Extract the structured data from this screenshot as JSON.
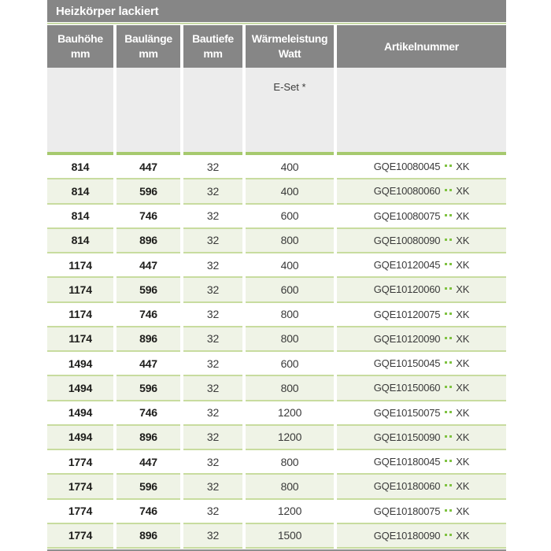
{
  "title": "Heizkörper lackiert",
  "table": {
    "columns": [
      {
        "line1": "Bauhöhe",
        "line2": "mm"
      },
      {
        "line1": "Baulänge",
        "line2": "mm"
      },
      {
        "line1": "Bautiefe",
        "line2": "mm"
      },
      {
        "line1": "Wärmeleistung",
        "line2": "Watt"
      },
      {
        "line1": "Artikelnummer",
        "line2": ""
      }
    ],
    "subheader_eset": "E-Set *",
    "rows": [
      {
        "bauhoehe": "814",
        "baulaenge": "447",
        "bautiefe": "32",
        "watt": "400",
        "artikel_prefix": "GQE10080045",
        "artikel_suffix": "XK"
      },
      {
        "bauhoehe": "814",
        "baulaenge": "596",
        "bautiefe": "32",
        "watt": "400",
        "artikel_prefix": "GQE10080060",
        "artikel_suffix": "XK"
      },
      {
        "bauhoehe": "814",
        "baulaenge": "746",
        "bautiefe": "32",
        "watt": "600",
        "artikel_prefix": "GQE10080075",
        "artikel_suffix": "XK"
      },
      {
        "bauhoehe": "814",
        "baulaenge": "896",
        "bautiefe": "32",
        "watt": "800",
        "artikel_prefix": "GQE10080090",
        "artikel_suffix": "XK"
      },
      {
        "bauhoehe": "1174",
        "baulaenge": "447",
        "bautiefe": "32",
        "watt": "400",
        "artikel_prefix": "GQE10120045",
        "artikel_suffix": "XK"
      },
      {
        "bauhoehe": "1174",
        "baulaenge": "596",
        "bautiefe": "32",
        "watt": "600",
        "artikel_prefix": "GQE10120060",
        "artikel_suffix": "XK"
      },
      {
        "bauhoehe": "1174",
        "baulaenge": "746",
        "bautiefe": "32",
        "watt": "800",
        "artikel_prefix": "GQE10120075",
        "artikel_suffix": "XK"
      },
      {
        "bauhoehe": "1174",
        "baulaenge": "896",
        "bautiefe": "32",
        "watt": "800",
        "artikel_prefix": "GQE10120090",
        "artikel_suffix": "XK"
      },
      {
        "bauhoehe": "1494",
        "baulaenge": "447",
        "bautiefe": "32",
        "watt": "600",
        "artikel_prefix": "GQE10150045",
        "artikel_suffix": "XK"
      },
      {
        "bauhoehe": "1494",
        "baulaenge": "596",
        "bautiefe": "32",
        "watt": "800",
        "artikel_prefix": "GQE10150060",
        "artikel_suffix": "XK"
      },
      {
        "bauhoehe": "1494",
        "baulaenge": "746",
        "bautiefe": "32",
        "watt": "1200",
        "artikel_prefix": "GQE10150075",
        "artikel_suffix": "XK"
      },
      {
        "bauhoehe": "1494",
        "baulaenge": "896",
        "bautiefe": "32",
        "watt": "1200",
        "artikel_prefix": "GQE10150090",
        "artikel_suffix": "XK"
      },
      {
        "bauhoehe": "1774",
        "baulaenge": "447",
        "bautiefe": "32",
        "watt": "800",
        "artikel_prefix": "GQE10180045",
        "artikel_suffix": "XK"
      },
      {
        "bauhoehe": "1774",
        "baulaenge": "596",
        "bautiefe": "32",
        "watt": "800",
        "artikel_prefix": "GQE10180060",
        "artikel_suffix": "XK"
      },
      {
        "bauhoehe": "1774",
        "baulaenge": "746",
        "bautiefe": "32",
        "watt": "1200",
        "artikel_prefix": "GQE10180075",
        "artikel_suffix": "XK"
      },
      {
        "bauhoehe": "1774",
        "baulaenge": "896",
        "bautiefe": "32",
        "watt": "1500",
        "artikel_prefix": "GQE10180090",
        "artikel_suffix": "XK"
      }
    ]
  },
  "colors": {
    "header_gray": "#868686",
    "subheader_gray": "#ececec",
    "row_tint_green": "#eff3e6",
    "rule_green_strong": "#a6c96e",
    "rule_green_light": "#c8dc9f",
    "dot_green": "#7fc241",
    "footer_gray": "#8f8f8f",
    "header_text": "#ffffff",
    "body_text": "#1d1d1b"
  }
}
